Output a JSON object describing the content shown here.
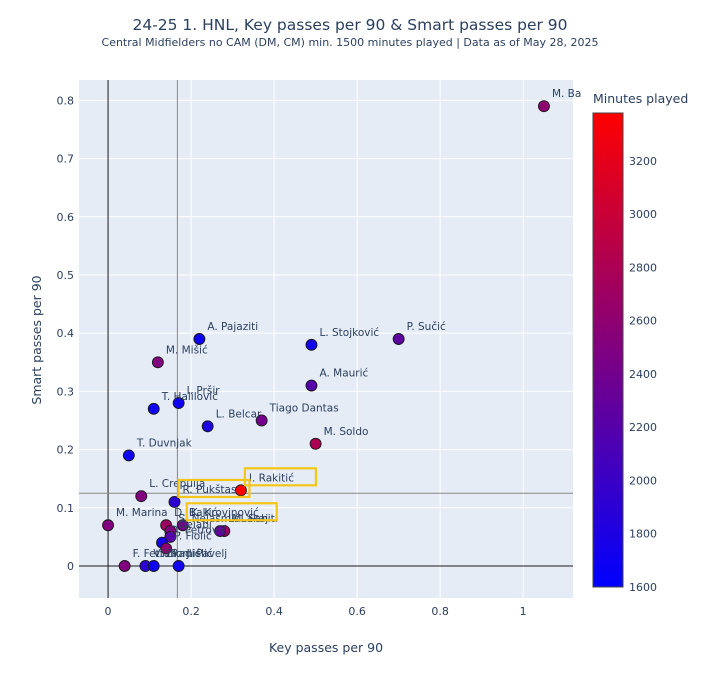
{
  "chart_data": {
    "type": "scatter",
    "title": "24-25 1. HNL, Key passes per 90 & Smart passes per 90",
    "subtitle": "Central Midfielders no CAM (DM, CM) min. 1500 minutes played | Data as of May 28, 2025",
    "xlabel": "Key passes per 90",
    "ylabel": "Smart passes per 90",
    "xlim": [
      -0.07,
      1.12
    ],
    "ylim": [
      -0.055,
      0.835
    ],
    "x_ticks": [
      0,
      0.2,
      0.4,
      0.6,
      0.8,
      1
    ],
    "x_tick_labels": [
      "0",
      "0.2",
      "0.4",
      "0.6",
      "0.8",
      "1"
    ],
    "y_ticks": [
      0,
      0.1,
      0.2,
      0.3,
      0.4,
      0.5,
      0.6,
      0.7,
      0.8
    ],
    "y_tick_labels": [
      "0",
      "0.1",
      "0.2",
      "0.3",
      "0.4",
      "0.5",
      "0.6",
      "0.7",
      "0.8"
    ],
    "grid": true,
    "reference_lines": {
      "x_average": 0.167,
      "y_average": 0.125
    },
    "colorbar": {
      "title": "Minutes played",
      "min": 1600,
      "max": 3380,
      "ticks": [
        1600,
        1800,
        2000,
        2200,
        2400,
        2600,
        2800,
        3000,
        3200
      ],
      "tick_labels": [
        "1600",
        "1800",
        "2000",
        "2200",
        "2400",
        "2600",
        "2800",
        "3000",
        "3200"
      ],
      "color_low": "#0000ff",
      "color_high": "#ff0000"
    },
    "points": [
      {
        "label": "M. Ba",
        "x": 1.05,
        "y": 0.79,
        "minutes": 2600,
        "label_pos": "top-right"
      },
      {
        "label": "P. Sučić",
        "x": 0.7,
        "y": 0.39,
        "minutes": 2250,
        "label_pos": "top-right"
      },
      {
        "label": "L. Stojković",
        "x": 0.49,
        "y": 0.38,
        "minutes": 1750,
        "label_pos": "top-right"
      },
      {
        "label": "A. Pajaziti",
        "x": 0.22,
        "y": 0.39,
        "minutes": 1700,
        "label_pos": "top-right"
      },
      {
        "label": "A. Maurić",
        "x": 0.49,
        "y": 0.31,
        "minutes": 2200,
        "label_pos": "top-right"
      },
      {
        "label": "M. Mišić",
        "x": 0.12,
        "y": 0.35,
        "minutes": 2500,
        "label_pos": "top-right"
      },
      {
        "label": "I. Pršir",
        "x": 0.17,
        "y": 0.28,
        "minutes": 1700,
        "label_pos": "top-right"
      },
      {
        "label": "T. Halilović",
        "x": 0.11,
        "y": 0.27,
        "minutes": 1700,
        "label_pos": "top-right"
      },
      {
        "label": "Tiago Dantas",
        "x": 0.37,
        "y": 0.25,
        "minutes": 2400,
        "label_pos": "top-right"
      },
      {
        "label": "L. Belcar",
        "x": 0.24,
        "y": 0.24,
        "minutes": 1800,
        "label_pos": "top-right"
      },
      {
        "label": "M. Soldo",
        "x": 0.5,
        "y": 0.21,
        "minutes": 2800,
        "label_pos": "top-right"
      },
      {
        "label": "T. Duvnjak",
        "x": 0.05,
        "y": 0.19,
        "minutes": 1700,
        "label_pos": "top-right"
      },
      {
        "label": "I. Rakitić",
        "x": 0.32,
        "y": 0.13,
        "minutes": 3380,
        "label_pos": "top-right",
        "highlight": true
      },
      {
        "label": "L. Crepulja",
        "x": 0.08,
        "y": 0.12,
        "minutes": 2500,
        "label_pos": "top-right"
      },
      {
        "label": "R. Pukštas",
        "x": 0.16,
        "y": 0.11,
        "minutes": 1900,
        "label_pos": "top-right",
        "highlight": true
      },
      {
        "label": "M. Marina",
        "x": 0.0,
        "y": 0.07,
        "minutes": 2500,
        "label_pos": "top-right"
      },
      {
        "label": "D. Bakić",
        "x": 0.14,
        "y": 0.07,
        "minutes": 2700,
        "label_pos": "top-right"
      },
      {
        "label": "K. Krovinović",
        "x": 0.18,
        "y": 0.07,
        "minutes": 2400,
        "label_pos": "top-right",
        "highlight": true
      },
      {
        "label": "M. Sahiti",
        "x": 0.28,
        "y": 0.06,
        "minutes": 2700,
        "label_pos": "top-right"
      },
      {
        "label": "L. Lakaj",
        "x": 0.27,
        "y": 0.06,
        "minutes": 2300,
        "label_pos": "top-right"
      },
      {
        "label": "S. Nejašmić",
        "x": 0.15,
        "y": 0.06,
        "minutes": 2500,
        "label_pos": "top-right"
      },
      {
        "label": "Delabi",
        "x": 0.15,
        "y": 0.05,
        "minutes": 2200,
        "label_pos": "top-right"
      },
      {
        "label": "D. Petrović",
        "x": 0.13,
        "y": 0.04,
        "minutes": 1750,
        "label_pos": "top-right"
      },
      {
        "label": "P. Fiolić",
        "x": 0.14,
        "y": 0.03,
        "minutes": 2600,
        "label_pos": "top-right"
      },
      {
        "label": "F. Fettah",
        "x": 0.04,
        "y": 0.0,
        "minutes": 2500,
        "label_pos": "top-right"
      },
      {
        "label": "J. Pavelj",
        "x": 0.17,
        "y": 0.0,
        "minutes": 1700,
        "label_pos": "top-right"
      },
      {
        "label": "V. Zlomislić",
        "x": 0.09,
        "y": 0.0,
        "minutes": 1900,
        "label_pos": "top-right"
      },
      {
        "label": "I. Radić",
        "x": 0.11,
        "y": 0.0,
        "minutes": 1700,
        "label_pos": "top-right"
      }
    ]
  }
}
